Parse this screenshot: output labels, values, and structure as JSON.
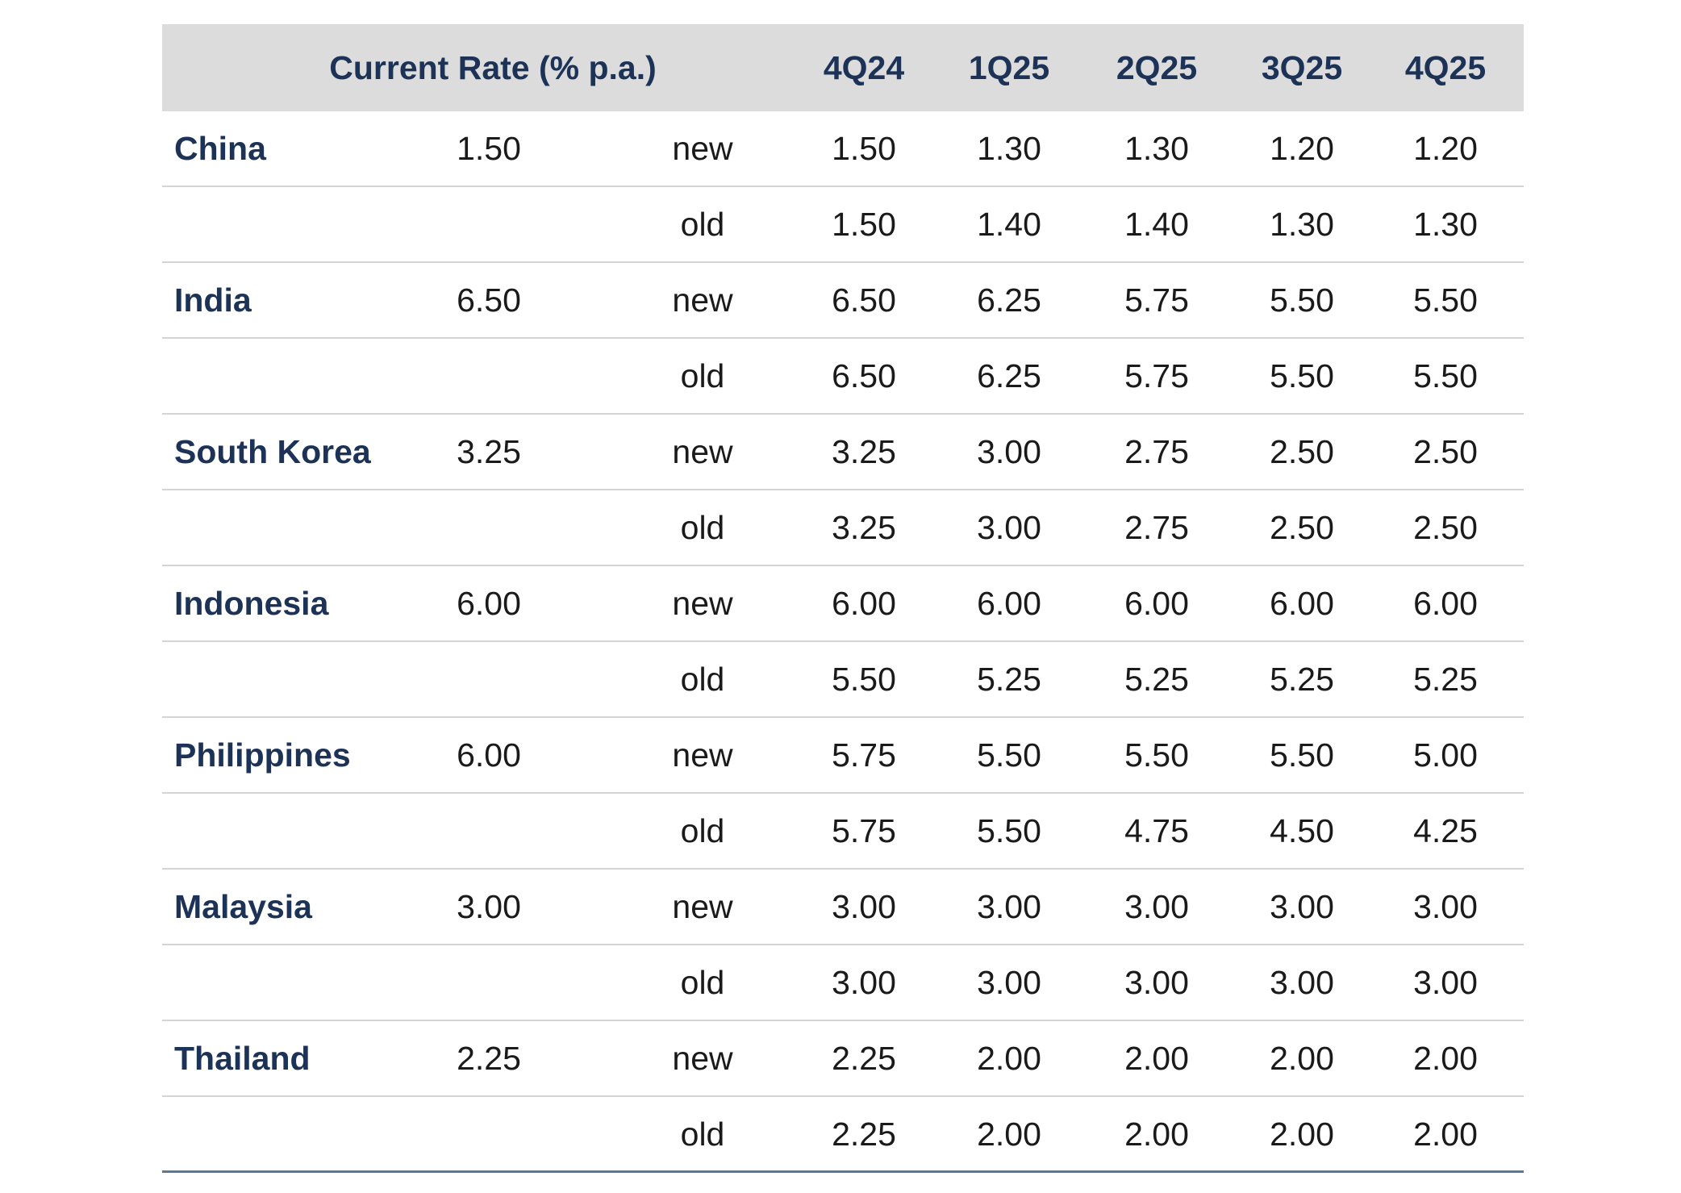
{
  "header": {
    "current_rate": "Current Rate (% p.a.)",
    "quarters": [
      "4Q24",
      "1Q25",
      "2Q25",
      "3Q25",
      "4Q25"
    ]
  },
  "rows": [
    {
      "country": "China",
      "current": "1.50",
      "label": "new",
      "values": [
        "1.50",
        "1.30",
        "1.30",
        "1.20",
        "1.20"
      ]
    },
    {
      "country": "",
      "current": "",
      "label": "old",
      "values": [
        "1.50",
        "1.40",
        "1.40",
        "1.30",
        "1.30"
      ]
    },
    {
      "country": "India",
      "current": "6.50",
      "label": "new",
      "values": [
        "6.50",
        "6.25",
        "5.75",
        "5.50",
        "5.50"
      ]
    },
    {
      "country": "",
      "current": "",
      "label": "old",
      "values": [
        "6.50",
        "6.25",
        "5.75",
        "5.50",
        "5.50"
      ]
    },
    {
      "country": "South Korea",
      "current": "3.25",
      "label": "new",
      "values": [
        "3.25",
        "3.00",
        "2.75",
        "2.50",
        "2.50"
      ]
    },
    {
      "country": "",
      "current": "",
      "label": "old",
      "values": [
        "3.25",
        "3.00",
        "2.75",
        "2.50",
        "2.50"
      ]
    },
    {
      "country": "Indonesia",
      "current": "6.00",
      "label": "new",
      "values": [
        "6.00",
        "6.00",
        "6.00",
        "6.00",
        "6.00"
      ]
    },
    {
      "country": "",
      "current": "",
      "label": "old",
      "values": [
        "5.50",
        "5.25",
        "5.25",
        "5.25",
        "5.25"
      ]
    },
    {
      "country": "Philippines",
      "current": "6.00",
      "label": "new",
      "values": [
        "5.75",
        "5.50",
        "5.50",
        "5.50",
        "5.00"
      ]
    },
    {
      "country": "",
      "current": "",
      "label": "old",
      "values": [
        "5.75",
        "5.50",
        "4.75",
        "4.50",
        "4.25"
      ]
    },
    {
      "country": "Malaysia",
      "current": "3.00",
      "label": "new",
      "values": [
        "3.00",
        "3.00",
        "3.00",
        "3.00",
        "3.00"
      ]
    },
    {
      "country": "",
      "current": "",
      "label": "old",
      "values": [
        "3.00",
        "3.00",
        "3.00",
        "3.00",
        "3.00"
      ]
    },
    {
      "country": "Thailand",
      "current": "2.25",
      "label": "new",
      "values": [
        "2.25",
        "2.00",
        "2.00",
        "2.00",
        "2.00"
      ]
    },
    {
      "country": "",
      "current": "",
      "label": "old",
      "values": [
        "2.25",
        "2.00",
        "2.00",
        "2.00",
        "2.00"
      ]
    }
  ]
}
